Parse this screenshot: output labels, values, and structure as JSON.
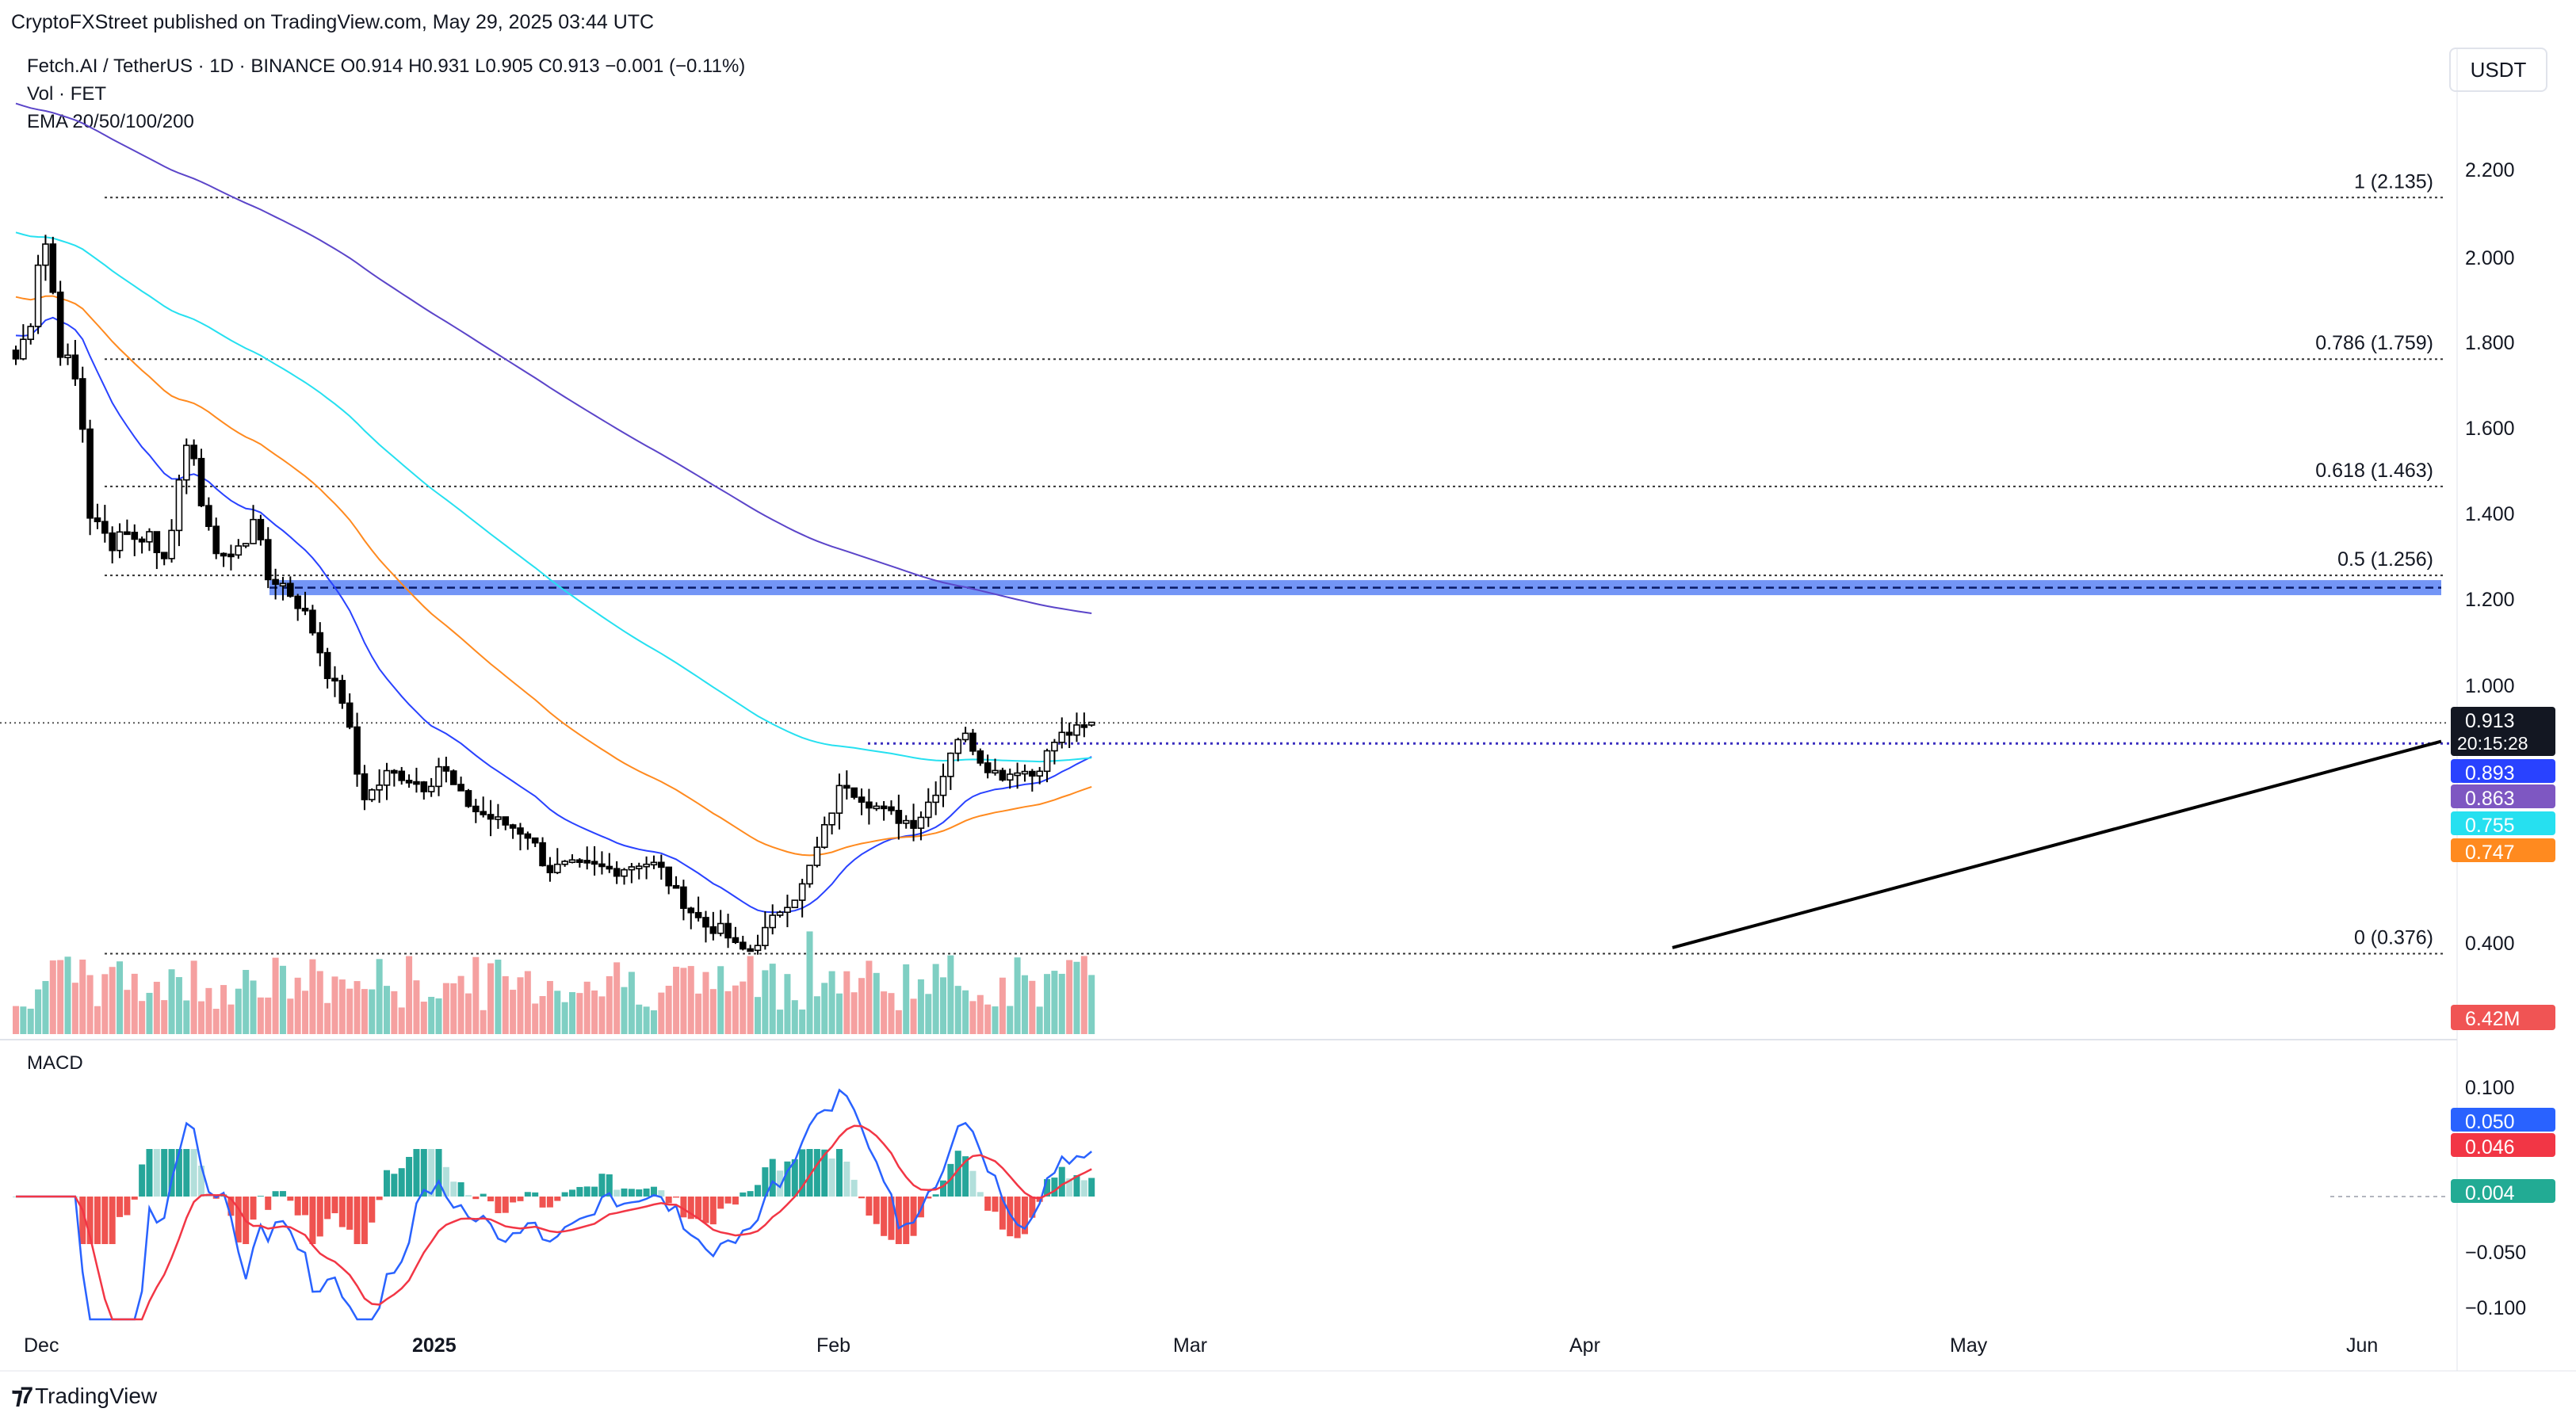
{
  "header": {
    "publisher": "CryptoFXStreet published on TradingView.com, May 29, 2025 03:44 UTC"
  },
  "legend": {
    "symbol_line": "Fetch.AI / TetherUS · 1D · BINANCE  O0.914  H0.931  L0.905  C0.913  −0.001 (−0.11%)",
    "volume_line": "Vol · FET",
    "ema_line": "EMA 20/50/100/200"
  },
  "currency": "USDT",
  "brand": "TradingView",
  "macd_label": "MACD",
  "chart_data": [
    {
      "type": "candlestick",
      "price_axis": {
        "ticks": [
          "2.200",
          "2.000",
          "1.800",
          "1.600",
          "1.400",
          "1.200",
          "1.000",
          "0.400"
        ]
      },
      "x_axis": {
        "ticks": [
          "Dec",
          "2025",
          "Feb",
          "Mar",
          "Apr",
          "May",
          "Jun"
        ]
      },
      "fib_levels": [
        {
          "label": "1 (2.135)",
          "value": 2.135
        },
        {
          "label": "0.786 (1.759)",
          "value": 1.759
        },
        {
          "label": "0.618 (1.463)",
          "value": 1.463
        },
        {
          "label": "0.5 (1.256)",
          "value": 1.256
        },
        {
          "label": "0 (0.376)",
          "value": 0.376
        }
      ],
      "support_zone": [
        1.21,
        1.245
      ],
      "last_price": {
        "value": "0.913",
        "countdown": "20:15:28",
        "color": "#131722"
      },
      "ema_labels": [
        {
          "value": "0.893",
          "color": "#2942ff"
        },
        {
          "value": "0.863",
          "color": "#7e57c2"
        },
        {
          "value": "0.755",
          "color": "#26e0f0"
        },
        {
          "value": "0.747",
          "color": "#ff8a1f"
        }
      ],
      "volume_label": {
        "value": "6.42M",
        "color": "#f05454"
      },
      "colors": {
        "up": "#ffffff",
        "down": "#000000",
        "vol_up": "#7fcfc3",
        "vol_down": "#f5a0a0",
        "ema20": "#2942ff",
        "ema50": "#ff8a1f",
        "ema100": "#26e0f0",
        "ema200": "#5b45c9"
      }
    },
    {
      "type": "macd",
      "axis_ticks": [
        "0.100",
        "−0.050",
        "−0.100"
      ],
      "labels": [
        {
          "value": "0.050",
          "color": "#2962ff"
        },
        {
          "value": "0.046",
          "color": "#f23645"
        },
        {
          "value": "0.004",
          "color": "#22ab94"
        }
      ]
    }
  ]
}
